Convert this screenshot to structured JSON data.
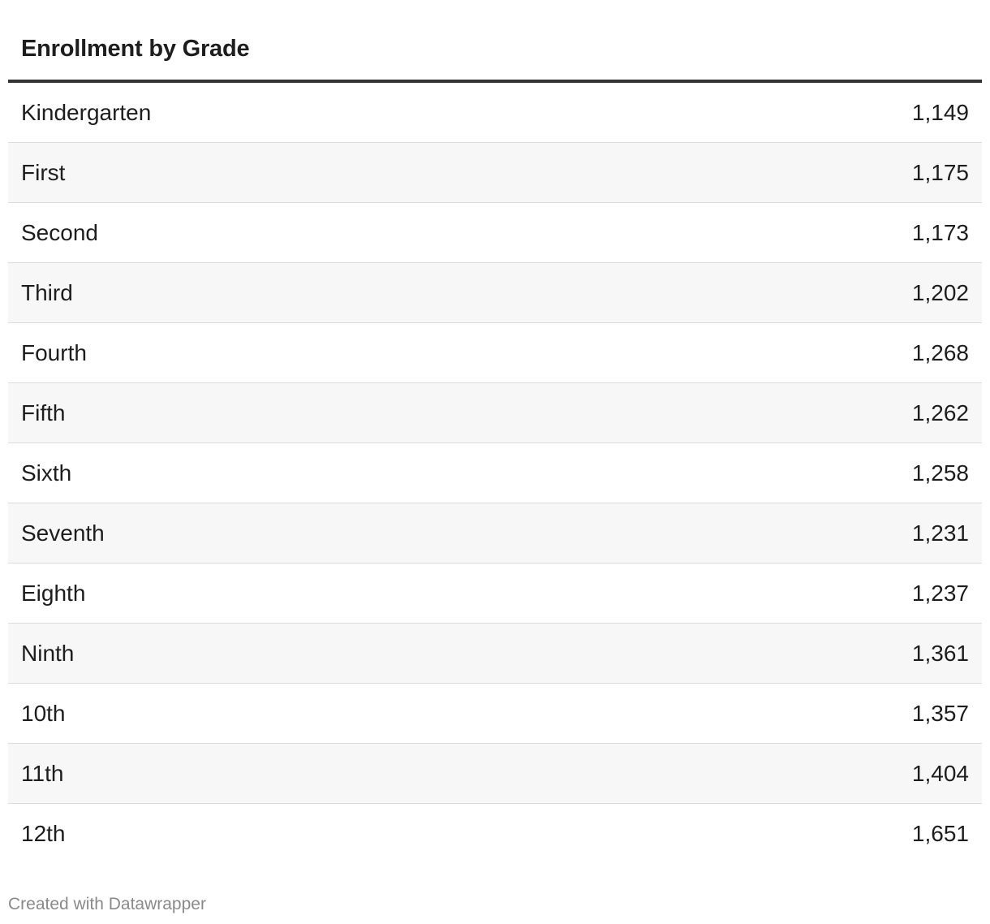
{
  "chart_data": {
    "type": "table",
    "title": "",
    "columns": [
      "Enrollment by Grade",
      ""
    ],
    "rows": [
      {
        "grade": "Kindergarten",
        "value": "1,149"
      },
      {
        "grade": "First",
        "value": "1,175"
      },
      {
        "grade": "Second",
        "value": "1,173"
      },
      {
        "grade": "Third",
        "value": "1,202"
      },
      {
        "grade": "Fourth",
        "value": "1,268"
      },
      {
        "grade": "Fifth",
        "value": "1,262"
      },
      {
        "grade": "Sixth",
        "value": "1,258"
      },
      {
        "grade": "Seventh",
        "value": "1,231"
      },
      {
        "grade": "Eighth",
        "value": "1,237"
      },
      {
        "grade": "Ninth",
        "value": "1,361"
      },
      {
        "grade": "10th",
        "value": "1,357"
      },
      {
        "grade": "11th",
        "value": "1,404"
      },
      {
        "grade": "12th",
        "value": "1,651"
      }
    ]
  },
  "footer": {
    "credit": "Created with Datawrapper"
  },
  "colors": {
    "header_rule": "#333333",
    "stripe": "#f7f7f7",
    "row_divider": "#dddddd",
    "footer_text": "#8a8a8a"
  }
}
